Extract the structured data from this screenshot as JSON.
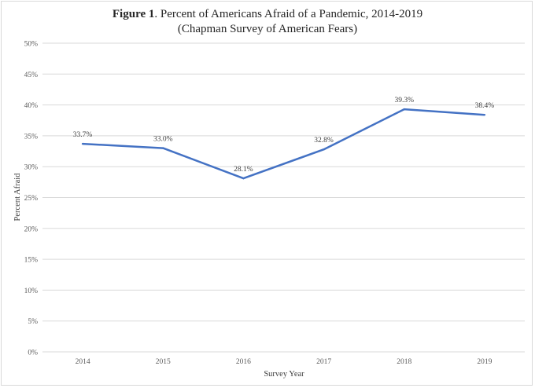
{
  "chart_data": {
    "type": "line",
    "title_bold": "Figure 1",
    "title_rest": ". Percent of Americans Afraid of a Pandemic, 2014-2019",
    "subtitle": "(Chapman Survey of American Fears)",
    "xlabel": "Survey Year",
    "ylabel": "Percent Afraid",
    "categories": [
      "2014",
      "2015",
      "2016",
      "2017",
      "2018",
      "2019"
    ],
    "series": [
      {
        "values": [
          33.7,
          33.0,
          28.1,
          32.8,
          39.3,
          38.4
        ],
        "labels": [
          "33.7%",
          "33.0%",
          "28.1%",
          "32.8%",
          "39.3%",
          "38.4%"
        ],
        "color": "#4472c4"
      }
    ],
    "ylim": [
      0,
      50
    ],
    "yticks": [
      0,
      5,
      10,
      15,
      20,
      25,
      30,
      35,
      40,
      45,
      50
    ],
    "ytick_labels": [
      "0%",
      "5%",
      "10%",
      "15%",
      "20%",
      "25%",
      "30%",
      "35%",
      "40%",
      "45%",
      "50%"
    ],
    "grid": true,
    "gridColor": "#d9d9d9"
  }
}
